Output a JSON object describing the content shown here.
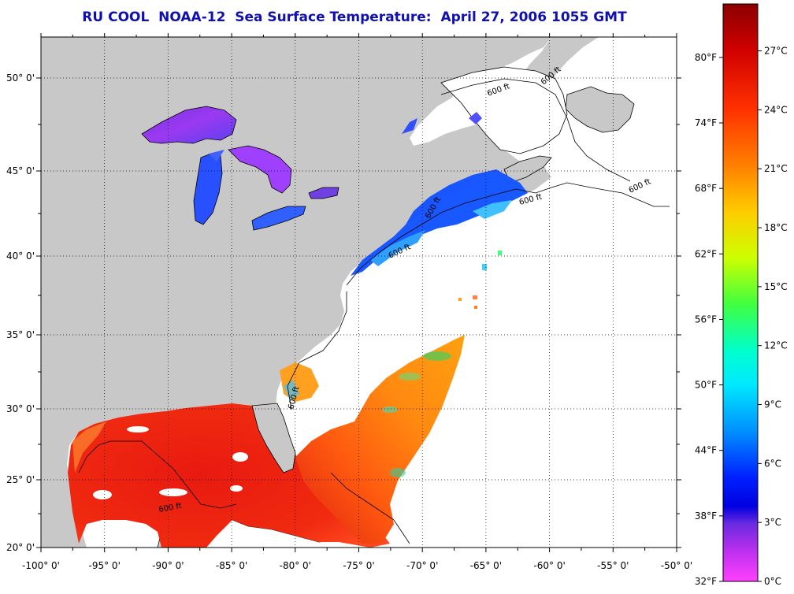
{
  "title": "RU COOL  NOAA-12  Sea Surface Temperature:  April 27, 2006 1055 GMT",
  "map": {
    "lon_range": [
      -100,
      -50
    ],
    "lat_range": [
      20,
      52
    ],
    "lon_ticks": [
      "-100° 0'",
      "-95° 0'",
      "-90° 0'",
      "-85° 0'",
      "-80° 0'",
      "-75° 0'",
      "-70° 0'",
      "-65° 0'",
      "-60° 0'",
      "-55° 0'",
      "-50° 0'"
    ],
    "lat_ticks": [
      "20° 0'",
      "25° 0'",
      "30° 0'",
      "35° 0'",
      "40° 0'",
      "45° 0'",
      "50° 0'"
    ],
    "contour_label": "600 ft",
    "colors": {
      "land": "#c8c8c8",
      "no_data": "#ffffff",
      "grid": "#000000"
    }
  },
  "colorbar": {
    "fahrenheit_labels": [
      "80°F",
      "74°F",
      "68°F",
      "62°F",
      "56°F",
      "50°F",
      "44°F",
      "38°F",
      "32°F"
    ],
    "celsius_labels": [
      "27°C",
      "24°C",
      "21°C",
      "18°C",
      "15°C",
      "12°C",
      "9°C",
      "6°C",
      "3°C",
      "0°C"
    ],
    "gradient_colors": [
      "#8b0000",
      "#ff2000",
      "#ff7a00",
      "#ffd000",
      "#b8ff00",
      "#30ff60",
      "#00ffff",
      "#0090ff",
      "#0000ff",
      "#8a2be2",
      "#ff40ff"
    ]
  }
}
